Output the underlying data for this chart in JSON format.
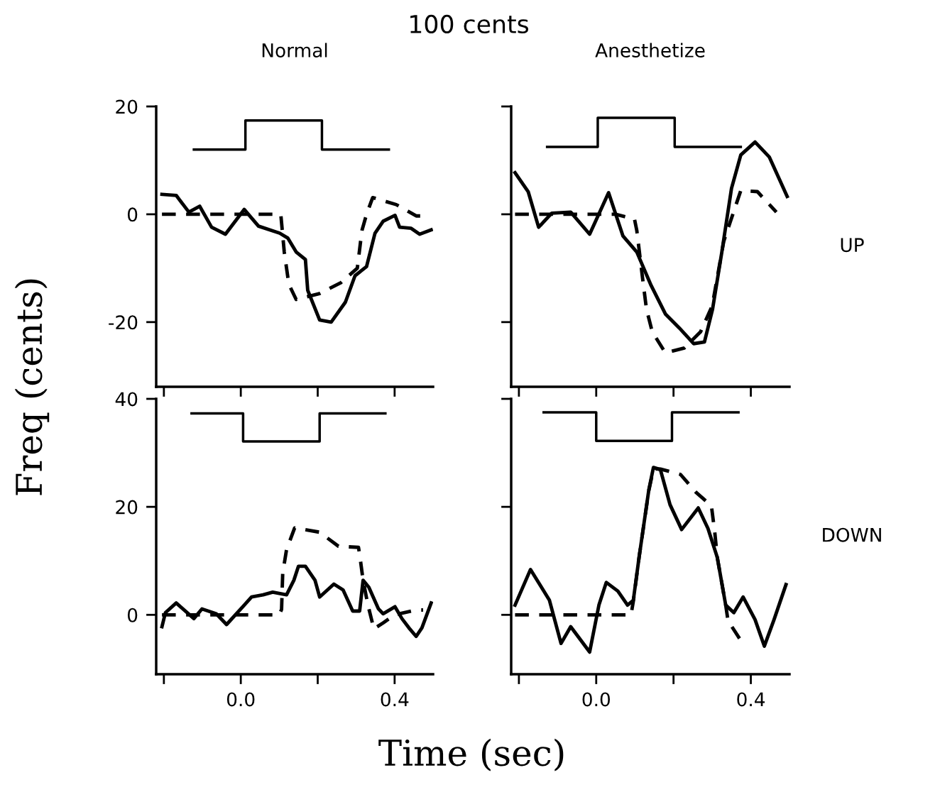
{
  "chart_data": [
    {
      "type": "line",
      "title": "Normal",
      "ylabel": "Freq (cents)",
      "annotations": [
        "100 cents"
      ],
      "xlim": [
        -0.22,
        0.5
      ],
      "xticks": [
        {
          "value": -0.2,
          "label": null
        },
        {
          "value": 0,
          "label": null
        },
        {
          "value": 0.2,
          "label": null
        },
        {
          "value": 0.4,
          "label": null
        }
      ],
      "ylim": [
        -32,
        20
      ],
      "yticks": [
        20,
        0,
        -20
      ],
      "tick_labels": "y",
      "grid": false,
      "legend": false,
      "series": [
        {
          "color": "#000000",
          "line_style": "solid",
          "x": [
            -0.122,
            0.012,
            0.012,
            0.211,
            0.211,
            0.385
          ],
          "values": [
            12.0,
            12.0,
            17.4,
            17.4,
            12.0,
            12.0
          ]
        },
        {
          "color": "#000000",
          "line_style": "solid",
          "x": [
            -0.205,
            -0.168,
            -0.135,
            -0.107,
            -0.076,
            -0.04,
            0.009,
            0.046,
            0.101,
            0.122,
            0.144,
            0.168,
            0.174,
            0.205,
            0.235,
            0.272,
            0.297,
            0.327,
            0.349,
            0.37,
            0.401,
            0.413,
            0.443,
            0.465,
            0.495
          ],
          "values": [
            3.7,
            3.5,
            0.4,
            1.5,
            -2.4,
            -3.7,
            0.9,
            -2.2,
            -3.5,
            -4.4,
            -7.0,
            -8.4,
            -14.1,
            -19.6,
            -20.0,
            -16.3,
            -11.4,
            -9.7,
            -3.5,
            -1.3,
            -0.2,
            -2.4,
            -2.6,
            -3.7,
            -2.9
          ]
        },
        {
          "color": "#000000",
          "line_style": "dashed",
          "x": [
            -0.205,
            0.104,
            0.113,
            0.125,
            0.144,
            0.205,
            0.26,
            0.303,
            0.315,
            0.327,
            0.343,
            0.404,
            0.456,
            0.468
          ],
          "values": [
            0,
            0,
            -7,
            -13,
            -15.8,
            -14.7,
            -12.7,
            -10,
            -3,
            0,
            3.1,
            1.8,
            -0.3,
            -0.3
          ]
        }
      ]
    },
    {
      "type": "line",
      "title": "Anesthetize",
      "annotations": [
        "UP"
      ],
      "xlim": [
        -0.22,
        0.5
      ],
      "xticks": [
        {
          "value": -0.2,
          "label": null
        },
        {
          "value": 0,
          "label": null
        },
        {
          "value": 0.2,
          "label": null
        },
        {
          "value": 0.4,
          "label": null
        }
      ],
      "ylim": [
        -32,
        20
      ],
      "yticks": [
        {
          "value": 20,
          "label": null
        },
        {
          "value": 0,
          "label": null
        },
        {
          "value": -20,
          "label": null
        }
      ],
      "tick_labels": false,
      "grid": false,
      "legend": false,
      "series": [
        {
          "color": "#000000",
          "line_style": "solid",
          "x": [
            -0.127,
            0.004,
            0.004,
            0.203,
            0.203,
            0.374
          ],
          "values": [
            12.5,
            12.5,
            17.9,
            17.9,
            12.5,
            12.5
          ]
        },
        {
          "color": "#000000",
          "line_style": "solid",
          "x": [
            -0.21,
            -0.176,
            -0.149,
            -0.115,
            -0.066,
            -0.017,
            0.032,
            0.069,
            0.105,
            0.142,
            0.179,
            0.215,
            0.252,
            0.28,
            0.301,
            0.325,
            0.35,
            0.374,
            0.411,
            0.448,
            0.494
          ],
          "values": [
            7.7,
            4.2,
            -2.4,
            0.2,
            0.4,
            -3.7,
            4.0,
            -4.0,
            -7.0,
            -13.2,
            -18.5,
            -21.1,
            -24.0,
            -23.7,
            -17.6,
            -7.0,
            4.8,
            11.0,
            13.4,
            10.6,
            3.3
          ]
        },
        {
          "color": "#000000",
          "line_style": "dashed",
          "x": [
            -0.21,
            -0.017,
            0.03,
            0.05,
            0.099,
            0.105,
            0.12,
            0.13,
            0.145,
            0.179,
            0.228,
            0.27,
            0.3,
            0.33,
            0.374,
            0.417,
            0.466
          ],
          "values": [
            0,
            0,
            0,
            0,
            -0.9,
            -3,
            -11.9,
            -17.6,
            -21.8,
            -25.7,
            -24.8,
            -21.8,
            -17,
            -5,
            4.4,
            4.2,
            0.4
          ]
        }
      ]
    },
    {
      "type": "line",
      "xlabel": "Time (sec)",
      "xlim": [
        -0.22,
        0.5
      ],
      "xticks": [
        {
          "value": -0.2,
          "label": null
        },
        {
          "value": 0,
          "label": "0.0"
        },
        {
          "value": 0.2,
          "label": null
        },
        {
          "value": 0.4,
          "label": "0.4"
        }
      ],
      "ylim": [
        -11,
        40
      ],
      "yticks": [
        40,
        20,
        0
      ],
      "grid": false,
      "legend": false,
      "series": [
        {
          "color": "#000000",
          "line_style": "solid",
          "x": [
            -0.128,
            0.006,
            0.006,
            0.205,
            0.205,
            0.376
          ],
          "values": [
            37.3,
            37.3,
            32.1,
            32.1,
            37.3,
            37.3
          ]
        },
        {
          "color": "#000000",
          "line_style": "solid",
          "x": [
            -0.205,
            -0.196,
            -0.168,
            -0.122,
            -0.101,
            -0.064,
            -0.037,
            0.009,
            0.028,
            0.058,
            0.083,
            0.119,
            0.138,
            0.15,
            0.168,
            0.193,
            0.205,
            0.242,
            0.266,
            0.291,
            0.309,
            0.318,
            0.333,
            0.358,
            0.37,
            0.401,
            0.419,
            0.437,
            0.456,
            0.471,
            0.495
          ],
          "values": [
            -2.2,
            0.4,
            2.2,
            -0.7,
            1.1,
            0.2,
            -1.8,
            1.8,
            3.3,
            3.7,
            4.2,
            3.7,
            6.4,
            9.0,
            9.0,
            6.4,
            3.3,
            5.7,
            4.6,
            0.7,
            0.7,
            6.4,
            5.1,
            1.1,
            0.2,
            1.5,
            -0.7,
            -2.4,
            -4.0,
            -2.4,
            2.2
          ]
        },
        {
          "color": "#000000",
          "line_style": "dashed",
          "x": [
            -0.205,
            0.1,
            0.106,
            0.109,
            0.119,
            0.14,
            0.205,
            0.254,
            0.306,
            0.309,
            0.318,
            0.33,
            0.346,
            0.37,
            0.4,
            0.456,
            0.474
          ],
          "values": [
            0,
            0,
            1,
            7.7,
            12.1,
            16.1,
            15.3,
            12.7,
            12.5,
            11.2,
            6.4,
            2,
            -2.6,
            -1.5,
            0,
            0.9,
            0.9
          ]
        }
      ]
    },
    {
      "type": "line",
      "annotations": [
        "DOWN"
      ],
      "xlim": [
        -0.22,
        0.5
      ],
      "xticks": [
        {
          "value": -0.2,
          "label": null
        },
        {
          "value": 0,
          "label": "0.0"
        },
        {
          "value": 0.2,
          "label": null
        },
        {
          "value": 0.4,
          "label": "0.4"
        }
      ],
      "ylim": [
        -11,
        40
      ],
      "yticks": [
        {
          "value": 40,
          "label": null
        },
        {
          "value": 20,
          "label": null
        },
        {
          "value": 0,
          "label": null
        }
      ],
      "tick_labels": "x",
      "grid": false,
      "legend": false,
      "series": [
        {
          "color": "#000000",
          "line_style": "solid",
          "x": [
            -0.136,
            0.0,
            0.0,
            0.196,
            0.196,
            0.368
          ],
          "values": [
            37.5,
            37.5,
            32.2,
            32.2,
            37.5,
            37.5
          ]
        },
        {
          "color": "#000000",
          "line_style": "solid",
          "x": [
            -0.21,
            -0.17,
            -0.121,
            -0.091,
            -0.066,
            -0.017,
            0.007,
            0.026,
            0.056,
            0.081,
            0.096,
            0.111,
            0.136,
            0.148,
            0.166,
            0.191,
            0.221,
            0.264,
            0.289,
            0.313,
            0.335,
            0.356,
            0.38,
            0.411,
            0.435,
            0.46,
            0.491
          ],
          "values": [
            1.8,
            8.4,
            2.7,
            -5.3,
            -2.2,
            -6.9,
            1.8,
            6.0,
            4.4,
            1.8,
            2.7,
            10.7,
            23.1,
            27.3,
            26.9,
            20.4,
            15.8,
            19.8,
            16.0,
            10.7,
            1.8,
            0.4,
            3.3,
            -0.9,
            -5.8,
            -0.9,
            5.6
          ]
        },
        {
          "color": "#000000",
          "line_style": "dashed",
          "x": [
            -0.21,
            0.059,
            0.09,
            0.096,
            0.111,
            0.136,
            0.148,
            0.166,
            0.218,
            0.258,
            0.298,
            0.307,
            0.313,
            0.335,
            0.341,
            0.371
          ],
          "values": [
            0,
            0,
            0,
            2.5,
            10.7,
            23,
            27,
            27,
            26,
            22.7,
            20.2,
            15.1,
            10.7,
            1.8,
            -1.1,
            -4.4
          ]
        }
      ]
    }
  ]
}
